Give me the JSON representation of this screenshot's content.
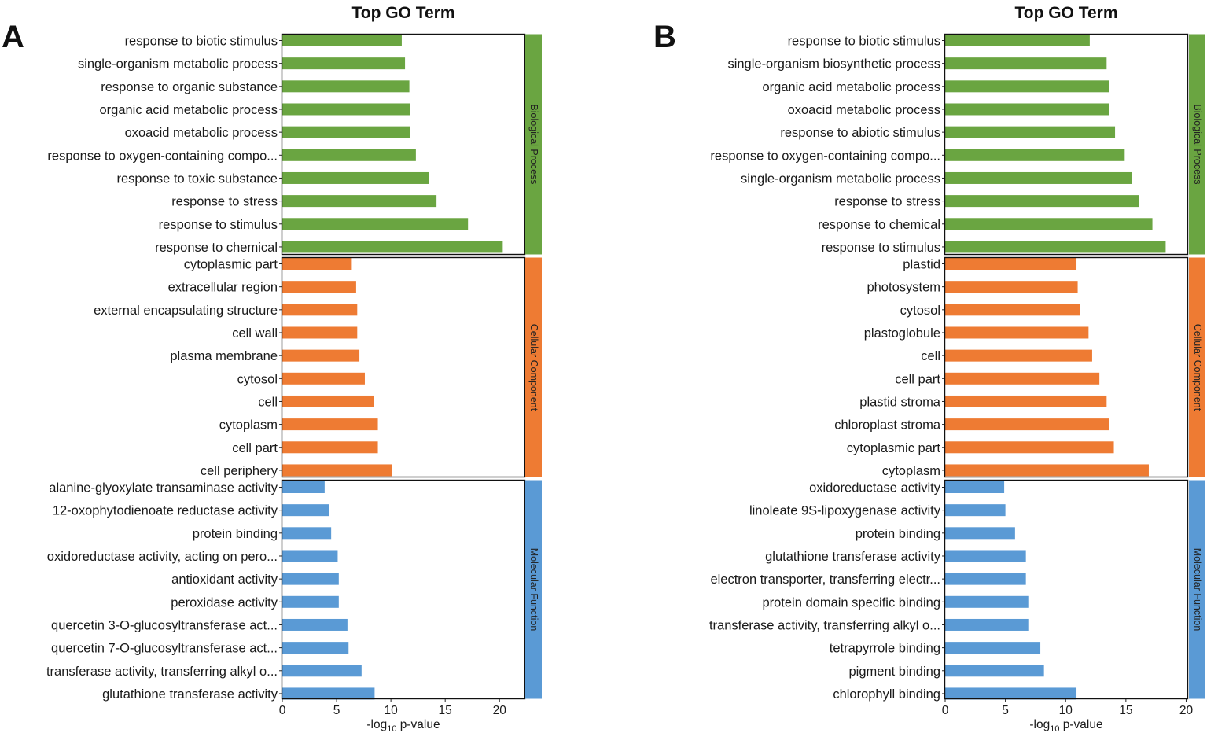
{
  "chart_data": [
    {
      "type": "bar",
      "orientation": "horizontal",
      "panel_label": "A",
      "title": "Top GO Term",
      "xlabel_prefix": "-log",
      "xlabel_sub": "10",
      "xlabel_suffix": " p-value",
      "xlim": [
        0,
        22.3
      ],
      "xticks": [
        0,
        5,
        10,
        15,
        20
      ],
      "facets": [
        {
          "name": "Biological Process",
          "color": "#6aa541",
          "categories": [
            "response to biotic stimulus",
            "single-organism metabolic process",
            "response to organic substance",
            "organic acid metabolic process",
            "oxoacid metabolic process",
            "response to oxygen-containing compo...",
            "response to toxic substance",
            "response to stress",
            "response to stimulus",
            "response to chemical"
          ],
          "values": [
            11.0,
            11.3,
            11.7,
            11.8,
            11.8,
            12.3,
            13.5,
            14.2,
            17.1,
            20.3
          ]
        },
        {
          "name": "Cellular Component",
          "color": "#ee7b33",
          "categories": [
            "cytoplasmic part",
            "extracellular region",
            "external encapsulating structure",
            "cell wall",
            "plasma membrane",
            "cytosol",
            "cell",
            "cytoplasm",
            "cell part",
            "cell periphery"
          ],
          "values": [
            6.4,
            6.8,
            6.9,
            6.9,
            7.1,
            7.6,
            8.4,
            8.8,
            8.8,
            10.1
          ]
        },
        {
          "name": "Molecular Function",
          "color": "#5a9ad5",
          "categories": [
            "alanine-glyoxylate transaminase activity",
            "12-oxophytodienoate reductase activity",
            "protein binding",
            "oxidoreductase activity, acting on pero...",
            "antioxidant activity",
            "peroxidase activity",
            "quercetin 3-O-glucosyltransferase act...",
            "quercetin 7-O-glucosyltransferase act...",
            "transferase activity, transferring alkyl o...",
            "glutathione transferase activity"
          ],
          "values": [
            3.9,
            4.3,
            4.5,
            5.1,
            5.2,
            5.2,
            6.0,
            6.1,
            7.3,
            8.5
          ]
        }
      ]
    },
    {
      "type": "bar",
      "orientation": "horizontal",
      "panel_label": "B",
      "title": "Top GO Term",
      "xlabel_prefix": "-log",
      "xlabel_sub": "10",
      "xlabel_suffix": " p-value",
      "xlim": [
        0,
        20.1
      ],
      "xticks": [
        0,
        5,
        10,
        15,
        20
      ],
      "facets": [
        {
          "name": "Biological Process",
          "color": "#6aa541",
          "categories": [
            "response to biotic stimulus",
            "single-organism biosynthetic process",
            "organic acid metabolic process",
            "oxoacid metabolic process",
            "response to abiotic stimulus",
            "response to oxygen-containing compo...",
            "single-organism metabolic process",
            "response to stress",
            "response to chemical",
            "response to stimulus"
          ],
          "values": [
            12.0,
            13.4,
            13.6,
            13.6,
            14.1,
            14.9,
            15.5,
            16.1,
            17.2,
            18.3
          ]
        },
        {
          "name": "Cellular Component",
          "color": "#ee7b33",
          "categories": [
            "plastid",
            "photosystem",
            "cytosol",
            "plastoglobule",
            "cell",
            "cell part",
            "plastid stroma",
            "chloroplast stroma",
            "cytoplasmic part",
            "cytoplasm"
          ],
          "values": [
            10.9,
            11.0,
            11.2,
            11.9,
            12.2,
            12.8,
            13.4,
            13.6,
            14.0,
            16.9
          ]
        },
        {
          "name": "Molecular Function",
          "color": "#5a9ad5",
          "categories": [
            "oxidoreductase activity",
            "linoleate 9S-lipoxygenase activity",
            "protein binding",
            "glutathione transferase activity",
            "electron transporter, transferring electr...",
            "protein domain specific binding",
            "transferase activity, transferring alkyl o...",
            "tetrapyrrole binding",
            "pigment binding",
            "chlorophyll binding"
          ],
          "values": [
            4.9,
            5.0,
            5.8,
            6.7,
            6.7,
            6.9,
            6.9,
            7.9,
            8.2,
            10.9
          ]
        }
      ]
    }
  ]
}
